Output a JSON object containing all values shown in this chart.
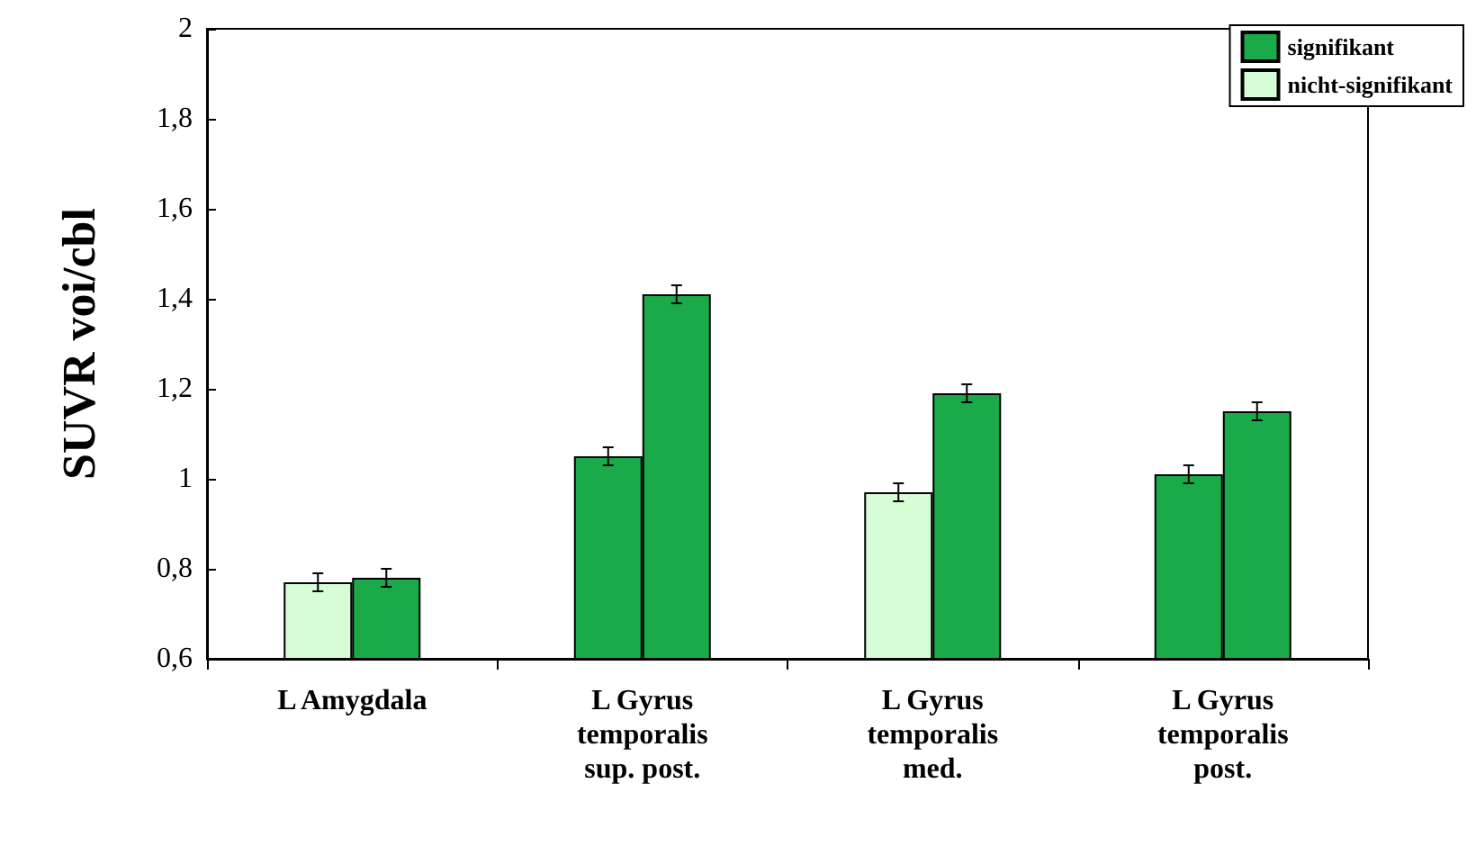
{
  "chart_data": {
    "type": "bar",
    "ylabel": "SUVR voi/cbl",
    "categories": [
      "L Amygdala",
      "L Gyrus\ntemporalis\nsup. post.",
      "L Gyrus\ntemporalis\nmed.",
      "L Gyrus\ntemporalis\npost."
    ],
    "series": [
      {
        "name": "signifikant",
        "color": "#1aaa4a",
        "values": [
          null,
          1.05,
          null,
          1.01
        ],
        "errors": [
          null,
          0.02,
          null,
          0.02
        ]
      },
      {
        "name": "nicht-signifikant",
        "color": "#d6fdd6",
        "values": [
          0.77,
          null,
          0.97,
          null
        ],
        "errors": [
          0.02,
          null,
          0.02,
          null
        ]
      },
      {
        "color": "#1aaa4a",
        "values": [
          0.78,
          1.41,
          1.19,
          1.15
        ],
        "errors": [
          0.02,
          0.02,
          0.02,
          0.02
        ]
      }
    ],
    "ylim": [
      0.6,
      2
    ],
    "yticks": [
      {
        "value": 0.6,
        "label": "0,6"
      },
      {
        "value": 0.8,
        "label": "0,8"
      },
      {
        "value": 1,
        "label": "1"
      },
      {
        "value": 1.2,
        "label": "1,2"
      },
      {
        "value": 1.4,
        "label": "1,4"
      },
      {
        "value": 1.6,
        "label": "1,6"
      },
      {
        "value": 1.8,
        "label": "1,8"
      },
      {
        "value": 2,
        "label": "2"
      }
    ],
    "grid": false,
    "legend": "top right"
  }
}
